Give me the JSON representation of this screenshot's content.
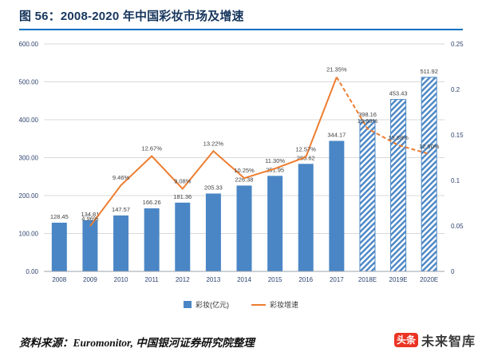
{
  "title": "图 56：2008-2020 年中国彩妆市场及增速",
  "legend": {
    "bars": "彩妆(亿元)",
    "line": "彩妆增速"
  },
  "source": "资料来源：Euromonitor, 中国银河证券研究院整理",
  "watermark": {
    "badge": "头条",
    "name": "未来智库"
  },
  "chart_data": {
    "type": "bar+line",
    "title": "图 56：2008-2020 年中国彩妆市场及增速",
    "categories": [
      "2008",
      "2009",
      "2010",
      "2011",
      "2012",
      "2013",
      "2014",
      "2015",
      "2016",
      "2017",
      "2018E",
      "2019E",
      "2020E"
    ],
    "series": [
      {
        "name": "彩妆(亿元)",
        "type": "bar",
        "axis": "left",
        "values": [
          128.45,
          134.81,
          147.57,
          166.26,
          181.36,
          205.33,
          226.38,
          251.95,
          283.62,
          344.17,
          398.16,
          453.43,
          511.92
        ]
      },
      {
        "name": "彩妆增速",
        "type": "line",
        "axis": "right",
        "values": [
          null,
          0.0496,
          0.0946,
          0.1267,
          0.0908,
          0.1322,
          0.1025,
          0.113,
          0.1257,
          0.2135,
          0.1569,
          0.1388,
          0.129
        ]
      }
    ],
    "bar_labels": [
      "128.45",
      "134.81",
      "147.57",
      "166.26",
      "181.36",
      "205.33",
      "226.38",
      "251.95",
      "283.62",
      "344.17",
      "398.16",
      "453.43",
      "511.92"
    ],
    "line_labels": [
      null,
      "4.96%",
      "9.46%",
      "12.67%",
      "9.08%",
      "13.22%",
      "10.25%",
      "11.30%",
      "12.57%",
      "21.35%",
      "15.69%",
      "13.88%",
      "12.90%"
    ],
    "left_axis": {
      "min": 0,
      "max": 600,
      "ticks": [
        "0.00",
        "100.00",
        "200.00",
        "300.00",
        "400.00",
        "500.00",
        "600.00"
      ]
    },
    "right_axis": {
      "min": 0,
      "max": 0.25,
      "ticks": [
        "0",
        "0.05",
        "0.1",
        "0.15",
        "0.2",
        "0.25"
      ]
    },
    "estimates_hatched": true,
    "dashed_projection": true,
    "grid": true,
    "legend_position": "bottom",
    "colors": {
      "bar": "#4A86C5",
      "line": "#ED7D31",
      "grid": "#D9D9D9",
      "axis_line": "#9BA3AD",
      "axis_text": "#2E4470",
      "value_text": "#404040"
    }
  }
}
